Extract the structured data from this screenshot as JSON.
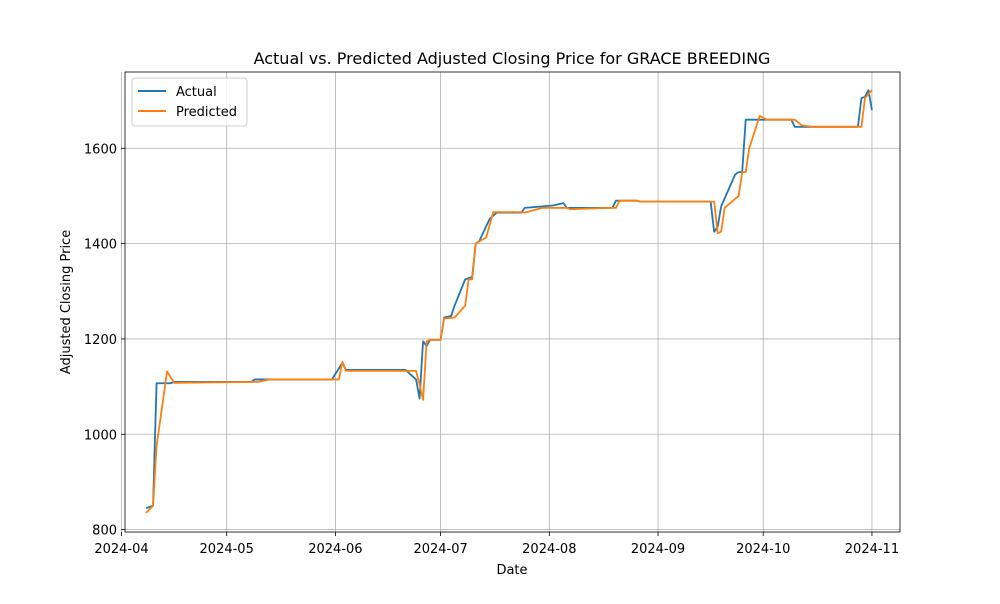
{
  "chart_data": {
    "type": "line",
    "title": "Actual vs. Predicted Adjusted Closing Price for GRACE BREEDING",
    "xlabel": "Date",
    "ylabel": "Adjusted Closing Price",
    "x_type": "date",
    "xlim": [
      "2024-04-02",
      "2024-11-09"
    ],
    "ylim": [
      795,
      1760
    ],
    "grid": true,
    "legend": "top-left",
    "x_ticks": [
      {
        "value": "2024-04-01",
        "label": "2024-04"
      },
      {
        "value": "2024-05-01",
        "label": "2024-05"
      },
      {
        "value": "2024-06-01",
        "label": "2024-06"
      },
      {
        "value": "2024-07-01",
        "label": "2024-07"
      },
      {
        "value": "2024-08-01",
        "label": "2024-08"
      },
      {
        "value": "2024-09-01",
        "label": "2024-09"
      },
      {
        "value": "2024-10-01",
        "label": "2024-10"
      },
      {
        "value": "2024-11-01",
        "label": "2024-11"
      }
    ],
    "y_ticks": [
      {
        "value": 800,
        "label": "800"
      },
      {
        "value": 1000,
        "label": "1000"
      },
      {
        "value": 1200,
        "label": "1200"
      },
      {
        "value": 1400,
        "label": "1400"
      },
      {
        "value": 1600,
        "label": "1600"
      }
    ],
    "series": [
      {
        "name": "Actual",
        "color": "#1f77b4",
        "points": [
          [
            "2024-04-08",
            845
          ],
          [
            "2024-04-10",
            850
          ],
          [
            "2024-04-11",
            1107
          ],
          [
            "2024-04-15",
            1107
          ],
          [
            "2024-04-16",
            1110
          ],
          [
            "2024-05-08",
            1110
          ],
          [
            "2024-05-09",
            1115
          ],
          [
            "2024-05-31",
            1115
          ],
          [
            "2024-06-03",
            1150
          ],
          [
            "2024-06-04",
            1135
          ],
          [
            "2024-06-21",
            1135
          ],
          [
            "2024-06-24",
            1115
          ],
          [
            "2024-06-25",
            1075
          ],
          [
            "2024-06-26",
            1195
          ],
          [
            "2024-06-27",
            1185
          ],
          [
            "2024-06-28",
            1198
          ],
          [
            "2024-07-01",
            1198
          ],
          [
            "2024-07-02",
            1245
          ],
          [
            "2024-07-04",
            1248
          ],
          [
            "2024-07-05",
            1270
          ],
          [
            "2024-07-08",
            1325
          ],
          [
            "2024-07-10",
            1330
          ],
          [
            "2024-07-11",
            1400
          ],
          [
            "2024-07-12",
            1405
          ],
          [
            "2024-07-15",
            1452
          ],
          [
            "2024-07-17",
            1465
          ],
          [
            "2024-07-24",
            1465
          ],
          [
            "2024-07-25",
            1475
          ],
          [
            "2024-08-02",
            1480
          ],
          [
            "2024-08-05",
            1485
          ],
          [
            "2024-08-06",
            1475
          ],
          [
            "2024-08-19",
            1475
          ],
          [
            "2024-08-20",
            1490
          ],
          [
            "2024-08-26",
            1490
          ],
          [
            "2024-08-27",
            1488
          ],
          [
            "2024-09-16",
            1488
          ],
          [
            "2024-09-17",
            1425
          ],
          [
            "2024-09-18",
            1435
          ],
          [
            "2024-09-19",
            1478
          ],
          [
            "2024-09-23",
            1545
          ],
          [
            "2024-09-24",
            1550
          ],
          [
            "2024-09-25",
            1550
          ],
          [
            "2024-09-26",
            1660
          ],
          [
            "2024-10-09",
            1660
          ],
          [
            "2024-10-10",
            1645
          ],
          [
            "2024-10-14",
            1645
          ],
          [
            "2024-10-15",
            1645
          ],
          [
            "2024-10-25",
            1645
          ],
          [
            "2024-10-28",
            1645
          ],
          [
            "2024-10-29",
            1705
          ],
          [
            "2024-10-30",
            1708
          ],
          [
            "2024-10-31",
            1722
          ],
          [
            "2024-11-01",
            1680
          ]
        ]
      },
      {
        "name": "Predicted",
        "color": "#ff7f0e",
        "points": [
          [
            "2024-04-08",
            835
          ],
          [
            "2024-04-10",
            850
          ],
          [
            "2024-04-11",
            975
          ],
          [
            "2024-04-14",
            1132
          ],
          [
            "2024-04-16",
            1108
          ],
          [
            "2024-05-10",
            1110
          ],
          [
            "2024-05-13",
            1115
          ],
          [
            "2024-06-02",
            1115
          ],
          [
            "2024-06-03",
            1152
          ],
          [
            "2024-06-04",
            1133
          ],
          [
            "2024-06-24",
            1133
          ],
          [
            "2024-06-25",
            1105
          ],
          [
            "2024-06-26",
            1072
          ],
          [
            "2024-06-27",
            1195
          ],
          [
            "2024-06-28",
            1198
          ],
          [
            "2024-07-01",
            1198
          ],
          [
            "2024-07-02",
            1243
          ],
          [
            "2024-07-05",
            1245
          ],
          [
            "2024-07-08",
            1270
          ],
          [
            "2024-07-09",
            1325
          ],
          [
            "2024-07-10",
            1325
          ],
          [
            "2024-07-11",
            1400
          ],
          [
            "2024-07-14",
            1413
          ],
          [
            "2024-07-16",
            1466
          ],
          [
            "2024-07-24",
            1466
          ],
          [
            "2024-07-25",
            1465
          ],
          [
            "2024-07-30",
            1475
          ],
          [
            "2024-08-06",
            1475
          ],
          [
            "2024-08-07",
            1472
          ],
          [
            "2024-08-18",
            1475
          ],
          [
            "2024-08-20",
            1475
          ],
          [
            "2024-08-21",
            1490
          ],
          [
            "2024-08-26",
            1490
          ],
          [
            "2024-08-27",
            1488
          ],
          [
            "2024-09-17",
            1488
          ],
          [
            "2024-09-18",
            1422
          ],
          [
            "2024-09-19",
            1425
          ],
          [
            "2024-09-20",
            1475
          ],
          [
            "2024-09-24",
            1500
          ],
          [
            "2024-09-25",
            1550
          ],
          [
            "2024-09-26",
            1550
          ],
          [
            "2024-09-27",
            1600
          ],
          [
            "2024-09-30",
            1668
          ],
          [
            "2024-10-02",
            1660
          ],
          [
            "2024-10-10",
            1660
          ],
          [
            "2024-10-12",
            1648
          ],
          [
            "2024-10-15",
            1645
          ],
          [
            "2024-10-28",
            1645
          ],
          [
            "2024-10-29",
            1645
          ],
          [
            "2024-10-30",
            1705
          ],
          [
            "2024-11-01",
            1722
          ]
        ]
      }
    ]
  }
}
